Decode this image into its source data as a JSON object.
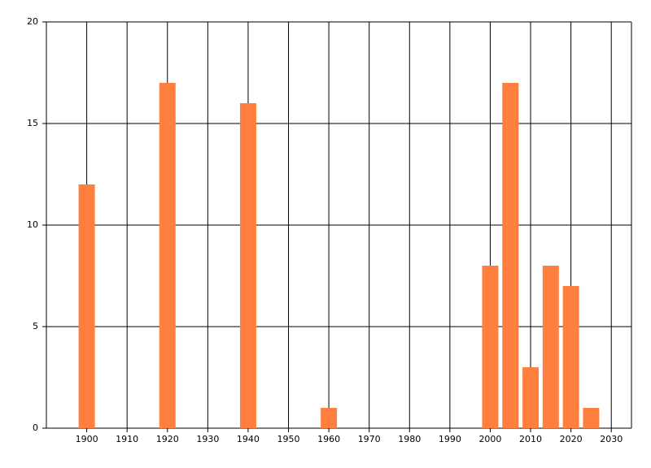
{
  "chart_data": {
    "type": "bar",
    "x": [
      1900,
      1920,
      1940,
      1960,
      2000,
      2005,
      2010,
      2015,
      2020,
      2025
    ],
    "values": [
      12,
      17,
      16,
      1,
      8,
      17,
      3,
      8,
      7,
      1
    ],
    "color": "#ff7f3f",
    "xlim": [
      1890,
      2035
    ],
    "xticks": [
      1900,
      1910,
      1920,
      1930,
      1940,
      1950,
      1960,
      1970,
      1980,
      1990,
      2000,
      2010,
      2020,
      2030
    ],
    "ylim": [
      0,
      20
    ],
    "yticks": [
      0,
      5,
      10,
      15,
      20
    ],
    "grid": true
  }
}
